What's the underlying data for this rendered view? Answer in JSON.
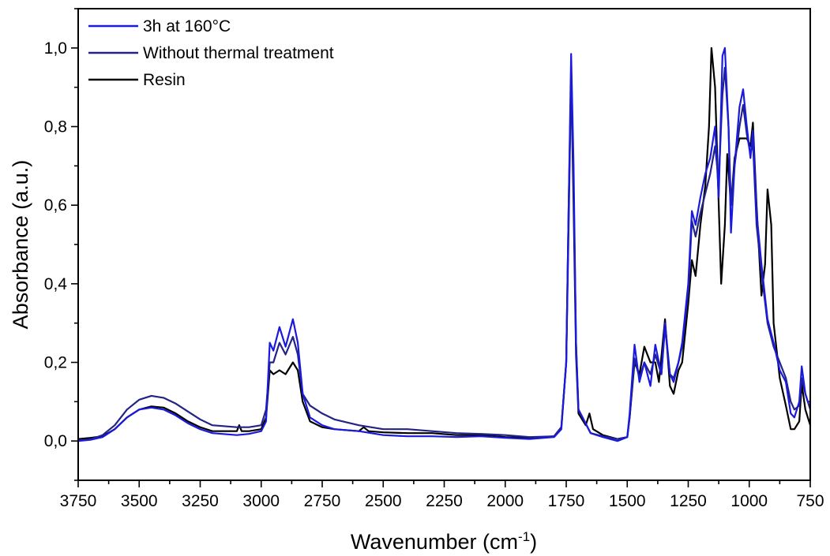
{
  "chart_data": {
    "type": "line",
    "xlabel": "Wavenumber (cm",
    "xlabel_sup": "-1",
    "xlabel_end": ")",
    "ylabel": "Absorbance (a.u.)",
    "xlim": [
      3750,
      750
    ],
    "ylim": [
      -0.1,
      1.1
    ],
    "x_reversed": true,
    "x_ticks": [
      3750,
      3500,
      3250,
      3000,
      2750,
      2500,
      2250,
      2000,
      1750,
      1500,
      1250,
      1000,
      750
    ],
    "x_tick_labels": [
      "3750",
      "3500",
      "3250",
      "3000",
      "2750",
      "2500",
      "2250",
      "2000",
      "1750",
      "1500",
      "1250",
      "1000",
      "750"
    ],
    "y_ticks": [
      0.0,
      0.2,
      0.4,
      0.6,
      0.8,
      1.0
    ],
    "y_tick_labels": [
      "0,0",
      "0,2",
      "0,4",
      "0,6",
      "0,8",
      "1,0"
    ],
    "grid": false,
    "legend_position": "top-left",
    "series": [
      {
        "name": "3h at 160°C",
        "color": "#1a1adc",
        "points": [
          [
            3750,
            0.0
          ],
          [
            3700,
            0.003
          ],
          [
            3650,
            0.01
          ],
          [
            3600,
            0.03
          ],
          [
            3550,
            0.06
          ],
          [
            3500,
            0.08
          ],
          [
            3450,
            0.085
          ],
          [
            3400,
            0.08
          ],
          [
            3350,
            0.065
          ],
          [
            3300,
            0.045
          ],
          [
            3250,
            0.03
          ],
          [
            3200,
            0.02
          ],
          [
            3100,
            0.015
          ],
          [
            3050,
            0.018
          ],
          [
            3000,
            0.025
          ],
          [
            2980,
            0.05
          ],
          [
            2965,
            0.25
          ],
          [
            2950,
            0.23
          ],
          [
            2925,
            0.29
          ],
          [
            2900,
            0.24
          ],
          [
            2870,
            0.31
          ],
          [
            2850,
            0.25
          ],
          [
            2830,
            0.12
          ],
          [
            2800,
            0.06
          ],
          [
            2750,
            0.04
          ],
          [
            2700,
            0.03
          ],
          [
            2600,
            0.025
          ],
          [
            2500,
            0.015
          ],
          [
            2400,
            0.012
          ],
          [
            2300,
            0.012
          ],
          [
            2200,
            0.01
          ],
          [
            2100,
            0.012
          ],
          [
            2000,
            0.008
          ],
          [
            1900,
            0.005
          ],
          [
            1800,
            0.01
          ],
          [
            1770,
            0.03
          ],
          [
            1750,
            0.2
          ],
          [
            1740,
            0.6
          ],
          [
            1730,
            0.985
          ],
          [
            1720,
            0.7
          ],
          [
            1710,
            0.25
          ],
          [
            1700,
            0.08
          ],
          [
            1650,
            0.02
          ],
          [
            1600,
            0.01
          ],
          [
            1540,
            0.0
          ],
          [
            1500,
            0.01
          ],
          [
            1490,
            0.07
          ],
          [
            1470,
            0.245
          ],
          [
            1450,
            0.15
          ],
          [
            1430,
            0.2
          ],
          [
            1405,
            0.14
          ],
          [
            1385,
            0.245
          ],
          [
            1360,
            0.17
          ],
          [
            1345,
            0.3
          ],
          [
            1325,
            0.17
          ],
          [
            1310,
            0.15
          ],
          [
            1290,
            0.2
          ],
          [
            1275,
            0.25
          ],
          [
            1250,
            0.4
          ],
          [
            1235,
            0.585
          ],
          [
            1220,
            0.55
          ],
          [
            1200,
            0.62
          ],
          [
            1180,
            0.68
          ],
          [
            1160,
            0.72
          ],
          [
            1140,
            0.8
          ],
          [
            1125,
            0.62
          ],
          [
            1110,
            0.98
          ],
          [
            1100,
            1.0
          ],
          [
            1085,
            0.8
          ],
          [
            1075,
            0.53
          ],
          [
            1060,
            0.7
          ],
          [
            1040,
            0.85
          ],
          [
            1025,
            0.895
          ],
          [
            1010,
            0.8
          ],
          [
            995,
            0.72
          ],
          [
            985,
            0.79
          ],
          [
            970,
            0.58
          ],
          [
            950,
            0.45
          ],
          [
            925,
            0.31
          ],
          [
            900,
            0.25
          ],
          [
            875,
            0.18
          ],
          [
            850,
            0.15
          ],
          [
            830,
            0.07
          ],
          [
            815,
            0.06
          ],
          [
            795,
            0.1
          ],
          [
            785,
            0.19
          ],
          [
            770,
            0.12
          ],
          [
            760,
            0.1
          ],
          [
            750,
            0.1
          ]
        ]
      },
      {
        "name": "Without thermal treatment",
        "color": "#232386",
        "points": [
          [
            3750,
            0.002
          ],
          [
            3700,
            0.004
          ],
          [
            3650,
            0.015
          ],
          [
            3600,
            0.04
          ],
          [
            3550,
            0.08
          ],
          [
            3500,
            0.105
          ],
          [
            3450,
            0.115
          ],
          [
            3400,
            0.11
          ],
          [
            3350,
            0.095
          ],
          [
            3300,
            0.075
          ],
          [
            3250,
            0.055
          ],
          [
            3200,
            0.04
          ],
          [
            3100,
            0.035
          ],
          [
            3050,
            0.035
          ],
          [
            3000,
            0.04
          ],
          [
            2980,
            0.08
          ],
          [
            2965,
            0.2
          ],
          [
            2950,
            0.2
          ],
          [
            2925,
            0.25
          ],
          [
            2900,
            0.22
          ],
          [
            2870,
            0.265
          ],
          [
            2850,
            0.22
          ],
          [
            2830,
            0.12
          ],
          [
            2800,
            0.09
          ],
          [
            2750,
            0.07
          ],
          [
            2700,
            0.055
          ],
          [
            2600,
            0.04
          ],
          [
            2500,
            0.03
          ],
          [
            2400,
            0.03
          ],
          [
            2300,
            0.025
          ],
          [
            2200,
            0.02
          ],
          [
            2100,
            0.018
          ],
          [
            2000,
            0.015
          ],
          [
            1900,
            0.01
          ],
          [
            1800,
            0.012
          ],
          [
            1770,
            0.035
          ],
          [
            1750,
            0.2
          ],
          [
            1740,
            0.55
          ],
          [
            1730,
            0.93
          ],
          [
            1720,
            0.65
          ],
          [
            1710,
            0.25
          ],
          [
            1700,
            0.08
          ],
          [
            1650,
            0.02
          ],
          [
            1600,
            0.012
          ],
          [
            1540,
            0.005
          ],
          [
            1500,
            0.01
          ],
          [
            1490,
            0.06
          ],
          [
            1470,
            0.21
          ],
          [
            1450,
            0.16
          ],
          [
            1430,
            0.2
          ],
          [
            1405,
            0.17
          ],
          [
            1385,
            0.22
          ],
          [
            1360,
            0.17
          ],
          [
            1345,
            0.29
          ],
          [
            1325,
            0.17
          ],
          [
            1310,
            0.16
          ],
          [
            1290,
            0.2
          ],
          [
            1275,
            0.24
          ],
          [
            1250,
            0.38
          ],
          [
            1235,
            0.56
          ],
          [
            1220,
            0.52
          ],
          [
            1200,
            0.58
          ],
          [
            1180,
            0.63
          ],
          [
            1160,
            0.68
          ],
          [
            1140,
            0.75
          ],
          [
            1125,
            0.66
          ],
          [
            1110,
            0.88
          ],
          [
            1100,
            0.95
          ],
          [
            1085,
            0.8
          ],
          [
            1075,
            0.6
          ],
          [
            1060,
            0.7
          ],
          [
            1040,
            0.8
          ],
          [
            1025,
            0.855
          ],
          [
            1010,
            0.78
          ],
          [
            995,
            0.73
          ],
          [
            985,
            0.76
          ],
          [
            970,
            0.55
          ],
          [
            950,
            0.43
          ],
          [
            925,
            0.3
          ],
          [
            900,
            0.24
          ],
          [
            875,
            0.2
          ],
          [
            850,
            0.16
          ],
          [
            830,
            0.1
          ],
          [
            815,
            0.08
          ],
          [
            795,
            0.09
          ],
          [
            785,
            0.16
          ],
          [
            770,
            0.12
          ],
          [
            760,
            0.1
          ],
          [
            750,
            0.08
          ]
        ]
      },
      {
        "name": "Resin",
        "color": "#000000",
        "points": [
          [
            3750,
            0.005
          ],
          [
            3700,
            0.008
          ],
          [
            3650,
            0.012
          ],
          [
            3600,
            0.03
          ],
          [
            3550,
            0.06
          ],
          [
            3500,
            0.08
          ],
          [
            3450,
            0.088
          ],
          [
            3400,
            0.085
          ],
          [
            3350,
            0.07
          ],
          [
            3300,
            0.05
          ],
          [
            3250,
            0.035
          ],
          [
            3200,
            0.025
          ],
          [
            3100,
            0.025
          ],
          [
            3090,
            0.04
          ],
          [
            3080,
            0.025
          ],
          [
            3050,
            0.025
          ],
          [
            3000,
            0.03
          ],
          [
            2980,
            0.06
          ],
          [
            2965,
            0.18
          ],
          [
            2950,
            0.17
          ],
          [
            2925,
            0.18
          ],
          [
            2900,
            0.17
          ],
          [
            2870,
            0.2
          ],
          [
            2850,
            0.18
          ],
          [
            2830,
            0.1
          ],
          [
            2800,
            0.05
          ],
          [
            2750,
            0.035
          ],
          [
            2700,
            0.03
          ],
          [
            2600,
            0.025
          ],
          [
            2580,
            0.035
          ],
          [
            2560,
            0.025
          ],
          [
            2500,
            0.022
          ],
          [
            2400,
            0.02
          ],
          [
            2300,
            0.02
          ],
          [
            2200,
            0.015
          ],
          [
            2100,
            0.015
          ],
          [
            2000,
            0.01
          ],
          [
            1900,
            0.008
          ],
          [
            1800,
            0.012
          ],
          [
            1770,
            0.035
          ],
          [
            1750,
            0.2
          ],
          [
            1740,
            0.6
          ],
          [
            1730,
            0.93
          ],
          [
            1720,
            0.6
          ],
          [
            1710,
            0.22
          ],
          [
            1700,
            0.07
          ],
          [
            1670,
            0.04
          ],
          [
            1655,
            0.07
          ],
          [
            1640,
            0.03
          ],
          [
            1600,
            0.015
          ],
          [
            1540,
            0.005
          ],
          [
            1500,
            0.01
          ],
          [
            1490,
            0.06
          ],
          [
            1470,
            0.2
          ],
          [
            1450,
            0.17
          ],
          [
            1430,
            0.24
          ],
          [
            1405,
            0.2
          ],
          [
            1385,
            0.2
          ],
          [
            1370,
            0.15
          ],
          [
            1345,
            0.31
          ],
          [
            1325,
            0.14
          ],
          [
            1310,
            0.12
          ],
          [
            1290,
            0.18
          ],
          [
            1275,
            0.2
          ],
          [
            1250,
            0.35
          ],
          [
            1235,
            0.46
          ],
          [
            1220,
            0.42
          ],
          [
            1200,
            0.55
          ],
          [
            1180,
            0.65
          ],
          [
            1165,
            0.8
          ],
          [
            1155,
            1.0
          ],
          [
            1140,
            0.9
          ],
          [
            1125,
            0.6
          ],
          [
            1115,
            0.4
          ],
          [
            1100,
            0.55
          ],
          [
            1090,
            0.73
          ],
          [
            1075,
            0.6
          ],
          [
            1060,
            0.72
          ],
          [
            1040,
            0.77
          ],
          [
            1025,
            0.77
          ],
          [
            1010,
            0.77
          ],
          [
            995,
            0.75
          ],
          [
            985,
            0.81
          ],
          [
            970,
            0.6
          ],
          [
            950,
            0.37
          ],
          [
            935,
            0.45
          ],
          [
            925,
            0.64
          ],
          [
            910,
            0.55
          ],
          [
            900,
            0.3
          ],
          [
            875,
            0.16
          ],
          [
            850,
            0.09
          ],
          [
            830,
            0.03
          ],
          [
            815,
            0.03
          ],
          [
            795,
            0.05
          ],
          [
            785,
            0.145
          ],
          [
            770,
            0.08
          ],
          [
            760,
            0.06
          ],
          [
            750,
            0.04
          ]
        ]
      }
    ]
  }
}
